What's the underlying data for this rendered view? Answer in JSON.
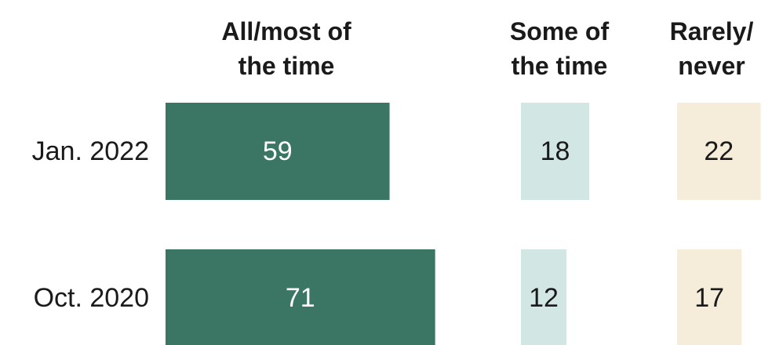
{
  "chart_data": {
    "type": "bar",
    "orientation": "horizontal",
    "layout": "grouped-columns",
    "categories": [
      "Jan. 2022",
      "Oct. 2020"
    ],
    "series": [
      {
        "name": "All/most of the time",
        "header_lines": [
          "All/most of",
          "the time"
        ],
        "values": [
          59,
          71
        ],
        "color": "#3b7564",
        "label_color": "#ffffff"
      },
      {
        "name": "Some of the time",
        "header_lines": [
          "Some of",
          "the time"
        ],
        "values": [
          18,
          12
        ],
        "color": "#d2e7e3",
        "label_color": "#1a1a1a"
      },
      {
        "name": "Rarely/never",
        "header_lines": [
          "Rarely/",
          "never"
        ],
        "values": [
          22,
          17
        ],
        "color": "#f5edda",
        "label_color": "#1a1a1a"
      }
    ],
    "grid": false,
    "legend": "column headers"
  }
}
